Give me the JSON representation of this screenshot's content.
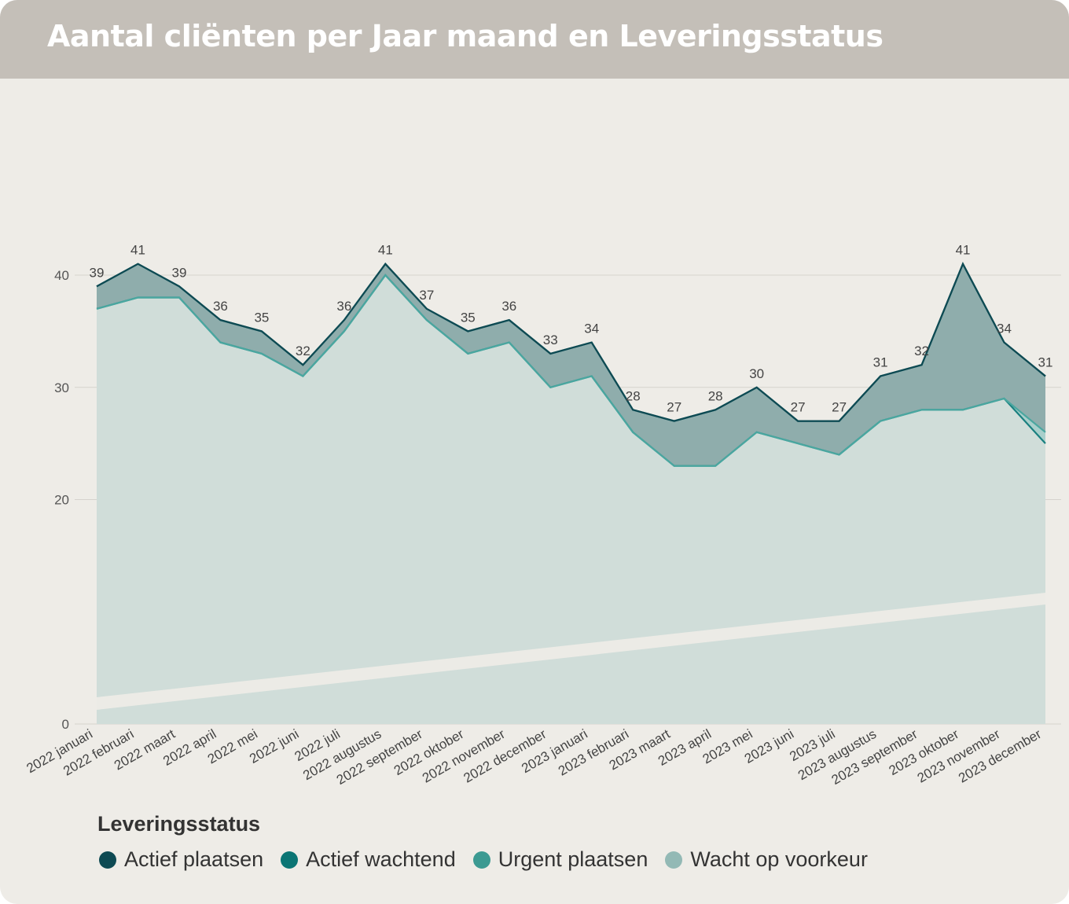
{
  "header": {
    "title": "Aantal cliënten per Jaar maand en Leveringsstatus"
  },
  "chart_data": {
    "type": "area",
    "stacked": true,
    "ylim": [
      0,
      45
    ],
    "yticks": [
      0,
      20,
      30,
      40
    ],
    "grid": true,
    "categories": [
      "2022 januari",
      "2022 februari",
      "2022 maart",
      "2022 april",
      "2022 mei",
      "2022 juni",
      "2022 juli",
      "2022 augustus",
      "2022 september",
      "2022 oktober",
      "2022 november",
      "2022 december",
      "2023 januari",
      "2023 februari",
      "2023 maart",
      "2023 april",
      "2023 mei",
      "2023 juni",
      "2023 juli",
      "2023 augustus",
      "2023 september",
      "2023 oktober",
      "2023 november",
      "2023 december"
    ],
    "series": [
      {
        "name": "Wacht op voorkeur",
        "color": "#93b9b5",
        "values": [
          37,
          38,
          38,
          34,
          33,
          31,
          35,
          40,
          36,
          33,
          34,
          30,
          31,
          26,
          23,
          23,
          26,
          25,
          24,
          27,
          28,
          28,
          29,
          25
        ]
      },
      {
        "name": "Urgent plaatsen",
        "color": "#3c9a92",
        "values": [
          0,
          0,
          0,
          0,
          0,
          0,
          0,
          0,
          0,
          0,
          0,
          0,
          0,
          0,
          0,
          0,
          0,
          0,
          0,
          0,
          0,
          0,
          0,
          1
        ]
      },
      {
        "name": "Actief wachtend",
        "color": "#0b7574",
        "values": [
          2,
          3,
          1,
          2,
          2,
          1,
          1,
          1,
          1,
          2,
          2,
          3,
          3,
          2,
          4,
          5,
          4,
          2,
          3,
          4,
          4,
          13,
          5,
          5
        ]
      },
      {
        "name": "Actief plaatsen",
        "color": "#0e4a53",
        "values": [
          0,
          0,
          0,
          0,
          0,
          0,
          0,
          0,
          0,
          0,
          0,
          0,
          0,
          0,
          0,
          0,
          0,
          0,
          0,
          0,
          0,
          0,
          0,
          0
        ]
      }
    ],
    "totals": [
      39,
      41,
      39,
      36,
      35,
      32,
      36,
      41,
      37,
      35,
      36,
      33,
      34,
      28,
      27,
      28,
      30,
      27,
      27,
      31,
      32,
      41,
      34,
      31
    ],
    "legend_position": "bottom-left"
  },
  "legend": {
    "title": "Leveringsstatus",
    "items": [
      {
        "label": "Actief plaatsen",
        "color": "#0e4a53"
      },
      {
        "label": "Actief wachtend",
        "color": "#0b7574"
      },
      {
        "label": "Urgent plaatsen",
        "color": "#3c9a92"
      },
      {
        "label": "Wacht op voorkeur",
        "color": "#93b9b5"
      }
    ]
  }
}
